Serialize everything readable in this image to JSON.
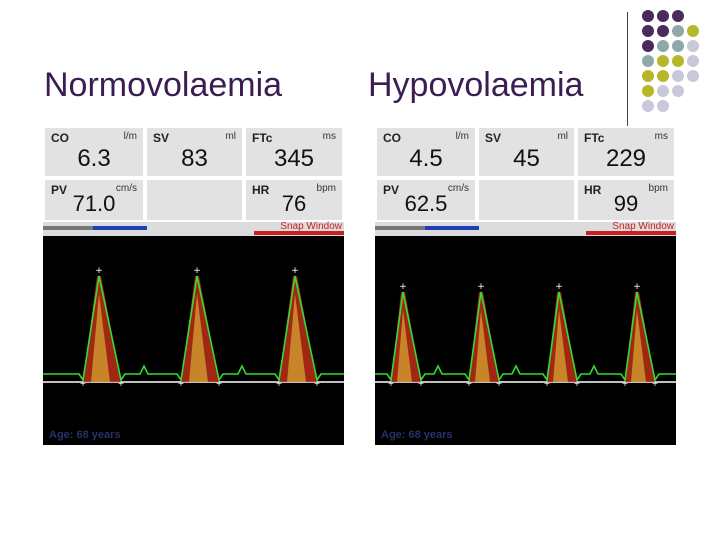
{
  "titles": {
    "left": "Normovolaemia",
    "right": "Hypovolaemia"
  },
  "colors": {
    "title": "#3b1d52",
    "dot_purple": "#4b2a5e",
    "dot_teal": "#8fa8a8",
    "dot_olive": "#b6b82a",
    "dot_lavender": "#c8c8dc",
    "trace": "#33dd33",
    "doppler_red": "#b42a16",
    "doppler_yellow": "#e6d23a"
  },
  "panels": [
    {
      "co": {
        "label": "CO",
        "unit": "l/m",
        "value": "6.3"
      },
      "sv": {
        "label": "SV",
        "unit": "ml",
        "value": "83"
      },
      "ftc": {
        "label": "FTc",
        "unit": "ms",
        "value": "345"
      },
      "pv": {
        "label": "PV",
        "unit": "cm/s",
        "value": "71.0"
      },
      "hr": {
        "label": "HR",
        "unit": "bpm",
        "value": "76"
      },
      "snap": "Snap Window",
      "age": "Age: 68 years",
      "waveform": {
        "peaks": 3
      }
    },
    {
      "co": {
        "label": "CO",
        "unit": "l/m",
        "value": "4.5"
      },
      "sv": {
        "label": "SV",
        "unit": "ml",
        "value": "45"
      },
      "ftc": {
        "label": "FTc",
        "unit": "ms",
        "value": "229"
      },
      "pv": {
        "label": "PV",
        "unit": "cm/s",
        "value": "62.5"
      },
      "hr": {
        "label": "HR",
        "unit": "bpm",
        "value": "99"
      },
      "snap": "Snap Window",
      "age": "Age: 68 years",
      "waveform": {
        "peaks": 4
      }
    }
  ]
}
